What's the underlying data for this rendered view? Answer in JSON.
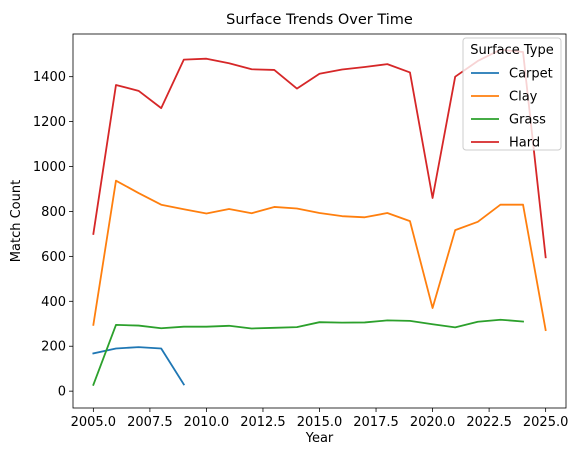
{
  "chart_data": {
    "type": "line",
    "title": "Surface Trends Over Time",
    "xlabel": "Year",
    "ylabel": "Match Count",
    "xlim": [
      2004.1,
      2025.9
    ],
    "ylim": [
      -75,
      1590
    ],
    "xticks": [
      2005,
      2007.5,
      2010,
      2012.5,
      2015,
      2017.5,
      2020,
      2022.5,
      2025
    ],
    "xtick_labels": [
      "2005.0",
      "2007.5",
      "2010.0",
      "2012.5",
      "2015.0",
      "2017.5",
      "2020.0",
      "2022.5",
      "2025.0"
    ],
    "yticks": [
      0,
      200,
      400,
      600,
      800,
      1000,
      1200,
      1400
    ],
    "ytick_labels": [
      "0",
      "200",
      "400",
      "600",
      "800",
      "1000",
      "1200",
      "1400"
    ],
    "grid": false,
    "legend": {
      "title": "Surface Type",
      "placement": "top-right"
    },
    "series": [
      {
        "name": "Carpet",
        "color": "#1f77b4",
        "x": [
          2005,
          2006,
          2007,
          2008,
          2009
        ],
        "y": [
          168,
          190,
          196,
          190,
          30
        ]
      },
      {
        "name": "Clay",
        "color": "#ff7f0e",
        "x": [
          2005,
          2006,
          2007,
          2008,
          2009,
          2010,
          2011,
          2012,
          2013,
          2014,
          2015,
          2016,
          2017,
          2018,
          2019,
          2020,
          2021,
          2022,
          2023,
          2024,
          2025
        ],
        "y": [
          295,
          937,
          882,
          830,
          810,
          791,
          811,
          792,
          820,
          813,
          793,
          779,
          774,
          793,
          757,
          370,
          717,
          754,
          830,
          830,
          272
        ]
      },
      {
        "name": "Grass",
        "color": "#2ca02c",
        "x": [
          2005,
          2006,
          2007,
          2008,
          2009,
          2010,
          2011,
          2012,
          2013,
          2014,
          2015,
          2016,
          2017,
          2018,
          2019,
          2020,
          2021,
          2022,
          2023,
          2024
        ],
        "y": [
          28,
          295,
          292,
          280,
          287,
          287,
          291,
          279,
          282,
          285,
          307,
          305,
          306,
          315,
          313,
          298,
          284,
          309,
          318,
          310
        ]
      },
      {
        "name": "Hard",
        "color": "#d62728",
        "x": [
          2005,
          2006,
          2007,
          2008,
          2009,
          2010,
          2011,
          2012,
          2013,
          2014,
          2015,
          2016,
          2017,
          2018,
          2019,
          2020,
          2021,
          2022,
          2023,
          2024,
          2025
        ],
        "y": [
          700,
          1363,
          1337,
          1260,
          1476,
          1480,
          1460,
          1433,
          1430,
          1347,
          1413,
          1432,
          1443,
          1456,
          1419,
          860,
          1400,
          1470,
          1520,
          1510,
          596
        ]
      }
    ]
  }
}
